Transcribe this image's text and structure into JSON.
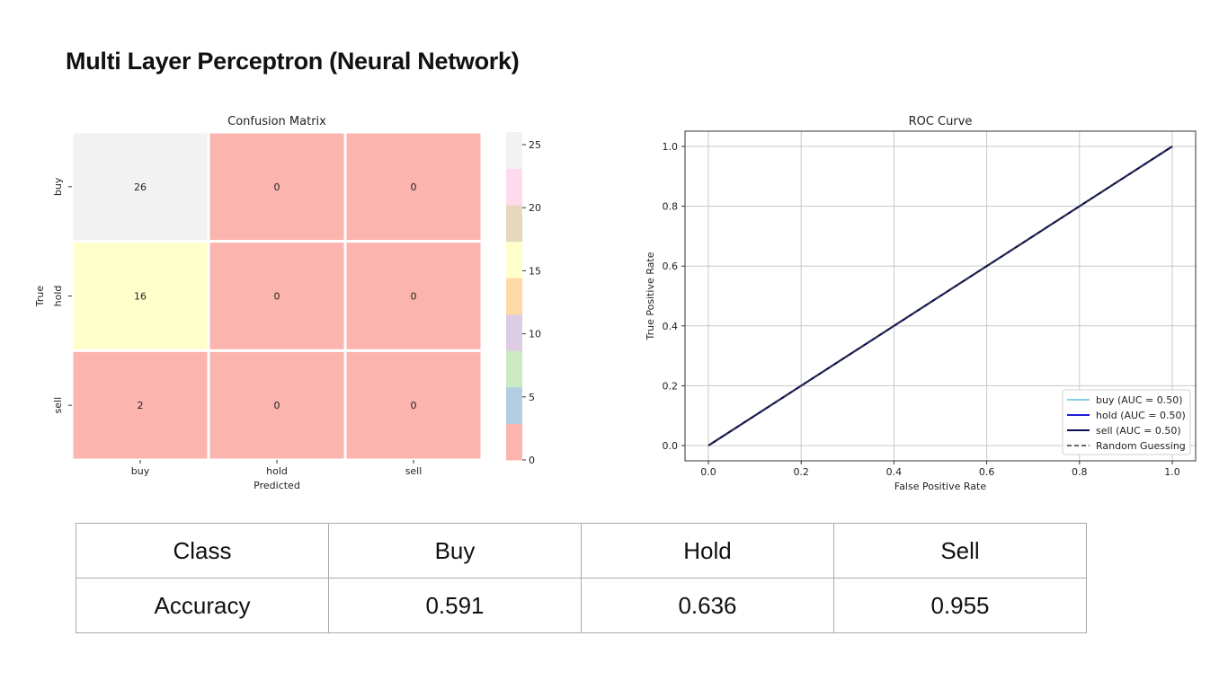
{
  "slide": {
    "title": "Multi Layer Perceptron (Neural Network)"
  },
  "chart_data": [
    {
      "type": "heatmap",
      "title": "Confusion Matrix",
      "xlabel": "Predicted",
      "ylabel": "True",
      "x_categories": [
        "buy",
        "hold",
        "sell"
      ],
      "y_categories": [
        "buy",
        "hold",
        "sell"
      ],
      "matrix": [
        [
          26,
          0,
          0
        ],
        [
          16,
          0,
          0
        ],
        [
          2,
          0,
          0
        ]
      ],
      "colorbar": {
        "ticks": [
          "0",
          "5",
          "10",
          "15",
          "20",
          "25"
        ],
        "range": [
          0,
          26
        ],
        "colors": [
          "#fbb4ae",
          "#b3cde3",
          "#ccebc5",
          "#decbe4",
          "#fed9a6",
          "#ffffcc",
          "#e5d8bd",
          "#fddaec",
          "#f2f2f2"
        ]
      }
    },
    {
      "type": "line",
      "title": "ROC Curve",
      "xlabel": "False Positive Rate",
      "ylabel": "True Positive Rate",
      "xlim": [
        0,
        1
      ],
      "ylim": [
        0,
        1
      ],
      "x_ticks": [
        "0.0",
        "0.2",
        "0.4",
        "0.6",
        "0.8",
        "1.0"
      ],
      "y_ticks": [
        "0.0",
        "0.2",
        "0.4",
        "0.6",
        "0.8",
        "1.0"
      ],
      "grid": true,
      "legend_position": "lower-right",
      "series": [
        {
          "name": "buy (AUC = 0.50)",
          "x": [
            0,
            1
          ],
          "y": [
            0,
            1
          ],
          "color": "#87ceeb",
          "style": "solid"
        },
        {
          "name": "hold (AUC = 0.50)",
          "x": [
            0,
            1
          ],
          "y": [
            0,
            1
          ],
          "color": "#1c1cd6",
          "style": "solid"
        },
        {
          "name": "sell (AUC = 0.50)",
          "x": [
            0,
            1
          ],
          "y": [
            0,
            1
          ],
          "color": "#0b0b50",
          "style": "solid"
        },
        {
          "name": "Random Guessing",
          "x": [
            0,
            1
          ],
          "y": [
            0,
            1
          ],
          "color": "#333333",
          "style": "dashed"
        }
      ]
    },
    {
      "type": "table",
      "header": [
        "Class",
        "Buy",
        "Hold",
        "Sell"
      ],
      "rows": [
        [
          "Accuracy",
          "0.591",
          "0.636",
          "0.955"
        ]
      ]
    }
  ]
}
